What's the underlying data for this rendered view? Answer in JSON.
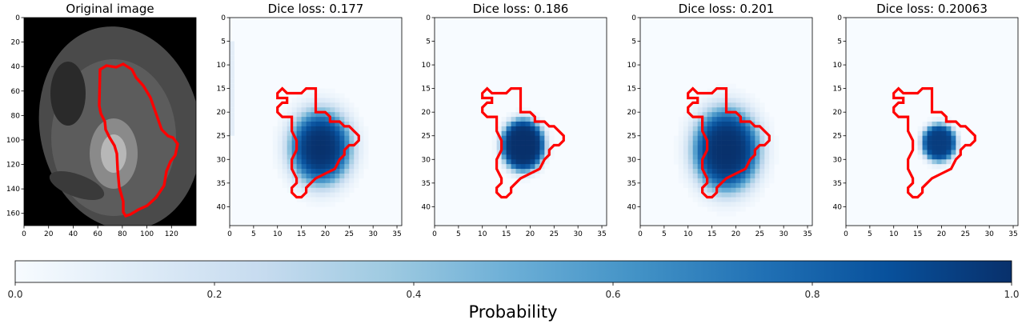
{
  "chart_data": {
    "type": "heatmap",
    "colormap": "Blues",
    "contour_color": "#ff0000",
    "panels": [
      {
        "title": "Original image",
        "kind": "mri",
        "xlim": [
          0,
          140
        ],
        "ylim": [
          170,
          0
        ],
        "xticks": [
          "0",
          "20",
          "40",
          "60",
          "80",
          "100",
          "120"
        ],
        "yticks": [
          "0",
          "20",
          "40",
          "60",
          "80",
          "100",
          "120",
          "140",
          "160"
        ]
      },
      {
        "title": "Dice loss: 0.177",
        "kind": "probability",
        "xlim": [
          0,
          36
        ],
        "ylim": [
          44,
          0
        ],
        "xticks": [
          "0",
          "5",
          "10",
          "15",
          "20",
          "25",
          "30",
          "35"
        ],
        "yticks": [
          "0",
          "5",
          "10",
          "15",
          "20",
          "25",
          "30",
          "35",
          "40"
        ],
        "blob": {
          "center": [
            19,
            27.5
          ],
          "radius": [
            6.2,
            7.6
          ],
          "peak": 1.0,
          "edge_softness": 2.0
        }
      },
      {
        "title": "Dice loss: 0.186",
        "kind": "probability",
        "xlim": [
          0,
          36
        ],
        "ylim": [
          44,
          0
        ],
        "xticks": [
          "0",
          "5",
          "10",
          "15",
          "20",
          "25",
          "30",
          "35"
        ],
        "yticks": [
          "0",
          "5",
          "10",
          "15",
          "20",
          "25",
          "30",
          "35",
          "40"
        ],
        "blob": {
          "center": [
            18.5,
            27
          ],
          "radius": [
            4.6,
            5.6
          ],
          "peak": 1.0,
          "edge_softness": 3.4
        }
      },
      {
        "title": "Dice loss: 0.201",
        "kind": "probability",
        "xlim": [
          0,
          36
        ],
        "ylim": [
          44,
          0
        ],
        "xticks": [
          "0",
          "5",
          "10",
          "15",
          "20",
          "25",
          "30",
          "35"
        ],
        "yticks": [
          "0",
          "5",
          "10",
          "15",
          "20",
          "25",
          "30",
          "35",
          "40"
        ],
        "blob": {
          "center": [
            18,
            28
          ],
          "radius": [
            6.8,
            8.6
          ],
          "peak": 1.0,
          "edge_softness": 2.2
        }
      },
      {
        "title": "Dice loss: 0.20063",
        "kind": "probability",
        "xlim": [
          0,
          36
        ],
        "ylim": [
          44,
          0
        ],
        "xticks": [
          "0",
          "5",
          "10",
          "15",
          "20",
          "25",
          "30",
          "35"
        ],
        "yticks": [
          "0",
          "5",
          "10",
          "15",
          "20",
          "25",
          "30",
          "35",
          "40"
        ],
        "blob": {
          "center": [
            19.5,
            26.5
          ],
          "radius": [
            3.6,
            4.0
          ],
          "peak": 0.95,
          "edge_softness": 3.2
        }
      }
    ],
    "contour_mask_units": [
      [
        12,
        16
      ],
      [
        13,
        16
      ],
      [
        14,
        16
      ],
      [
        15,
        16
      ],
      [
        16,
        15
      ],
      [
        17,
        15
      ],
      [
        18,
        15
      ],
      [
        18,
        16
      ],
      [
        18,
        17
      ],
      [
        18,
        18
      ],
      [
        18,
        19
      ],
      [
        18,
        20
      ],
      [
        19,
        20
      ],
      [
        20,
        20
      ],
      [
        21,
        21
      ],
      [
        21,
        22
      ],
      [
        22,
        22
      ],
      [
        23,
        22
      ],
      [
        24,
        23
      ],
      [
        25,
        23
      ],
      [
        26,
        24
      ],
      [
        27,
        25
      ],
      [
        27,
        26
      ],
      [
        26,
        27
      ],
      [
        25,
        27
      ],
      [
        24,
        28
      ],
      [
        24,
        29
      ],
      [
        23,
        30
      ],
      [
        22,
        32
      ],
      [
        20,
        33
      ],
      [
        18,
        34
      ],
      [
        17,
        35
      ],
      [
        16,
        36
      ],
      [
        16,
        37
      ],
      [
        15,
        38
      ],
      [
        14,
        38
      ],
      [
        13,
        37
      ],
      [
        13,
        36
      ],
      [
        14,
        35
      ],
      [
        14,
        34
      ],
      [
        13,
        32
      ],
      [
        13,
        30
      ],
      [
        14,
        28
      ],
      [
        14,
        26
      ],
      [
        13,
        24
      ],
      [
        13,
        22
      ],
      [
        13,
        21
      ],
      [
        12,
        21
      ],
      [
        11,
        21
      ],
      [
        10,
        20
      ],
      [
        10,
        19
      ],
      [
        11,
        18
      ],
      [
        12,
        18
      ],
      [
        12,
        17
      ],
      [
        11,
        17
      ],
      [
        10,
        17
      ],
      [
        10,
        16
      ],
      [
        11,
        15
      ]
    ],
    "colorbar": {
      "label": "Probability",
      "range": [
        0,
        1
      ],
      "ticks": [
        "0.0",
        "0.2",
        "0.4",
        "0.6",
        "0.8",
        "1.0"
      ]
    }
  }
}
